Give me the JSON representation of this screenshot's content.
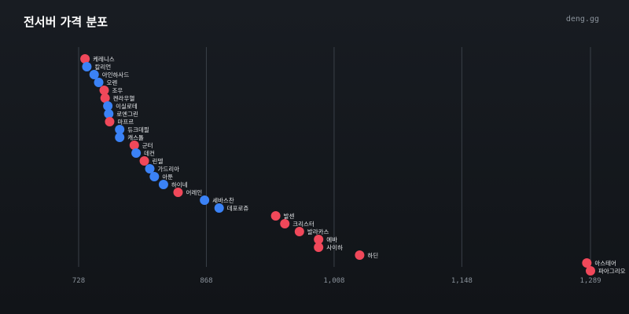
{
  "header": {
    "title": "전서버 가격 분포",
    "brand": "deng.gg"
  },
  "colors": {
    "red": "#f0485a",
    "blue": "#3b82f6"
  },
  "chart_data": {
    "type": "scatter",
    "title": "전서버 가격 분포",
    "xlabel": "",
    "ylabel": "",
    "xlim": [
      728,
      1289
    ],
    "xticks": [
      728,
      868,
      1008,
      1148,
      1289
    ],
    "xtick_labels": [
      "728",
      "868",
      "1,008",
      "1,148",
      "1,289"
    ],
    "grid": true,
    "points": [
      {
        "label": "케레니스",
        "x": 735,
        "color": "red"
      },
      {
        "label": "칼리언",
        "x": 737,
        "color": "blue"
      },
      {
        "label": "아인하사드",
        "x": 745,
        "color": "blue"
      },
      {
        "label": "오렌",
        "x": 750,
        "color": "blue"
      },
      {
        "label": "조우",
        "x": 756,
        "color": "red"
      },
      {
        "label": "켄라우헬",
        "x": 757,
        "color": "red"
      },
      {
        "label": "이실로테",
        "x": 760,
        "color": "blue"
      },
      {
        "label": "로엔그린",
        "x": 761,
        "color": "blue"
      },
      {
        "label": "마프르",
        "x": 762,
        "color": "red"
      },
      {
        "label": "듀크데필",
        "x": 773,
        "color": "blue"
      },
      {
        "label": "캐스톨",
        "x": 773,
        "color": "blue"
      },
      {
        "label": "군터",
        "x": 789,
        "color": "red"
      },
      {
        "label": "데컨",
        "x": 791,
        "color": "blue"
      },
      {
        "label": "린델",
        "x": 800,
        "color": "red"
      },
      {
        "label": "가드리아",
        "x": 806,
        "color": "blue"
      },
      {
        "label": "아툰",
        "x": 811,
        "color": "blue"
      },
      {
        "label": "하이네",
        "x": 821,
        "color": "blue"
      },
      {
        "label": "어레인",
        "x": 837,
        "color": "red"
      },
      {
        "label": "세바스찬",
        "x": 866,
        "color": "blue"
      },
      {
        "label": "데포로쥬",
        "x": 882,
        "color": "blue"
      },
      {
        "label": "발센",
        "x": 944,
        "color": "red"
      },
      {
        "label": "크리스터",
        "x": 954,
        "color": "red"
      },
      {
        "label": "발라카스",
        "x": 970,
        "color": "red"
      },
      {
        "label": "에바",
        "x": 991,
        "color": "red"
      },
      {
        "label": "사이하",
        "x": 991,
        "color": "red"
      },
      {
        "label": "하딘",
        "x": 1036,
        "color": "red"
      },
      {
        "label": "아스테어",
        "x": 1285,
        "color": "red"
      },
      {
        "label": "파아그리오",
        "x": 1289,
        "color": "red"
      }
    ]
  }
}
